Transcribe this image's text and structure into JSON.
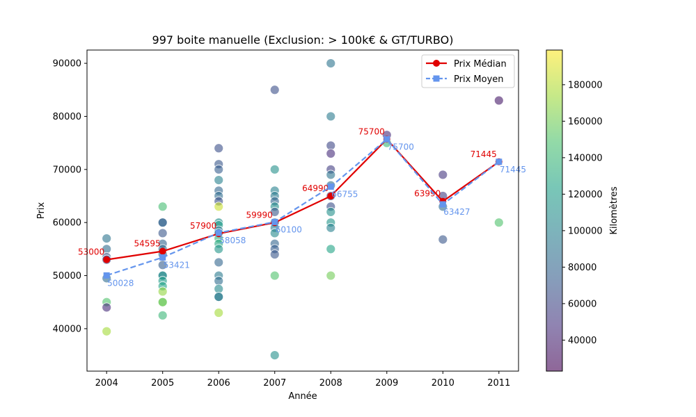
{
  "chart_data": {
    "type": "scatter",
    "title": "997 boite manuelle (Exclusion: > 100k€ & GT/TURBO)",
    "xlabel": "Année",
    "ylabel": "Prix",
    "x_ticks": [
      2004,
      2005,
      2006,
      2007,
      2008,
      2009,
      2010,
      2011
    ],
    "y_ticks": [
      40000,
      50000,
      60000,
      70000,
      80000,
      90000
    ],
    "xlim": [
      2003.65,
      2011.35
    ],
    "ylim": [
      32000,
      92500
    ],
    "colorbar": {
      "label": "Kilomètres",
      "ticks": [
        40000,
        60000,
        80000,
        100000,
        120000,
        140000,
        160000,
        180000
      ],
      "range": [
        23000,
        199000
      ],
      "colors": [
        "#440154",
        "#46327e",
        "#365c8d",
        "#277f8e",
        "#1fa187",
        "#4ac16d",
        "#a0da39",
        "#fde725"
      ]
    },
    "legend": {
      "position": "top-right",
      "entries": [
        "Prix Médian",
        "Prix Moyen"
      ]
    },
    "series": [
      {
        "name": "Prix Médian",
        "color": "#e00000",
        "style": "solid",
        "x": [
          2004,
          2005,
          2006,
          2007,
          2008,
          2009,
          2010,
          2011
        ],
        "values": [
          53000,
          54595,
          57900,
          59990,
          64990,
          75700,
          63990,
          71445
        ],
        "labels": [
          "53000",
          "54595",
          "57900",
          "59990",
          "64990",
          "75700",
          "63990",
          "71445"
        ]
      },
      {
        "name": "Prix Moyen",
        "color": "#6495ed",
        "style": "dashed",
        "x": [
          2004,
          2005,
          2006,
          2007,
          2008,
          2009,
          2010,
          2011
        ],
        "values": [
          50028,
          53421,
          58058,
          60100,
          66755,
          75700,
          63427,
          71445
        ],
        "labels": [
          "50028",
          "53421",
          "58058",
          "60100",
          "66755",
          "75700",
          "63427",
          "71445"
        ]
      }
    ],
    "scatter_points": [
      {
        "x": 2004,
        "y": 57000,
        "km": 90000
      },
      {
        "x": 2004,
        "y": 55000,
        "km": 85000
      },
      {
        "x": 2004,
        "y": 53500,
        "km": 70000
      },
      {
        "x": 2004,
        "y": 53000,
        "km": 60000
      },
      {
        "x": 2004,
        "y": 49500,
        "km": 85000
      },
      {
        "x": 2004,
        "y": 45000,
        "km": 150000
      },
      {
        "x": 2004,
        "y": 44000,
        "km": 45000
      },
      {
        "x": 2004,
        "y": 39500,
        "km": 175000
      },
      {
        "x": 2005,
        "y": 63000,
        "km": 145000
      },
      {
        "x": 2005,
        "y": 60000,
        "km": 75000
      },
      {
        "x": 2005,
        "y": 60000,
        "km": 80000
      },
      {
        "x": 2005,
        "y": 58000,
        "km": 70000
      },
      {
        "x": 2005,
        "y": 56000,
        "km": 80000
      },
      {
        "x": 2005,
        "y": 55000,
        "km": 85000
      },
      {
        "x": 2005,
        "y": 54000,
        "km": 90000
      },
      {
        "x": 2005,
        "y": 52000,
        "km": 75000
      },
      {
        "x": 2005,
        "y": 50000,
        "km": 95000
      },
      {
        "x": 2005,
        "y": 50000,
        "km": 110000
      },
      {
        "x": 2005,
        "y": 49000,
        "km": 120000
      },
      {
        "x": 2005,
        "y": 48000,
        "km": 125000
      },
      {
        "x": 2005,
        "y": 47000,
        "km": 170000
      },
      {
        "x": 2005,
        "y": 45000,
        "km": 155000
      },
      {
        "x": 2005,
        "y": 45000,
        "km": 160000
      },
      {
        "x": 2005,
        "y": 42500,
        "km": 140000
      },
      {
        "x": 2006,
        "y": 74000,
        "km": 65000
      },
      {
        "x": 2006,
        "y": 71000,
        "km": 70000
      },
      {
        "x": 2006,
        "y": 70000,
        "km": 75000
      },
      {
        "x": 2006,
        "y": 68000,
        "km": 100000
      },
      {
        "x": 2006,
        "y": 66000,
        "km": 80000
      },
      {
        "x": 2006,
        "y": 65000,
        "km": 85000
      },
      {
        "x": 2006,
        "y": 64000,
        "km": 65000
      },
      {
        "x": 2006,
        "y": 63000,
        "km": 185000
      },
      {
        "x": 2006,
        "y": 60000,
        "km": 110000
      },
      {
        "x": 2006,
        "y": 59500,
        "km": 120000
      },
      {
        "x": 2006,
        "y": 58500,
        "km": 90000
      },
      {
        "x": 2006,
        "y": 58000,
        "km": 100000
      },
      {
        "x": 2006,
        "y": 57000,
        "km": 135000
      },
      {
        "x": 2006,
        "y": 56000,
        "km": 130000
      },
      {
        "x": 2006,
        "y": 55000,
        "km": 115000
      },
      {
        "x": 2006,
        "y": 52500,
        "km": 80000
      },
      {
        "x": 2006,
        "y": 50000,
        "km": 95000
      },
      {
        "x": 2006,
        "y": 49000,
        "km": 85000
      },
      {
        "x": 2006,
        "y": 47500,
        "km": 105000
      },
      {
        "x": 2006,
        "y": 46000,
        "km": 110000
      },
      {
        "x": 2006,
        "y": 46000,
        "km": 90000
      },
      {
        "x": 2006,
        "y": 43000,
        "km": 175000
      },
      {
        "x": 2007,
        "y": 85000,
        "km": 65000
      },
      {
        "x": 2007,
        "y": 70000,
        "km": 110000
      },
      {
        "x": 2007,
        "y": 66000,
        "km": 100000
      },
      {
        "x": 2007,
        "y": 65000,
        "km": 95000
      },
      {
        "x": 2007,
        "y": 64000,
        "km": 80000
      },
      {
        "x": 2007,
        "y": 63000,
        "km": 110000
      },
      {
        "x": 2007,
        "y": 62000,
        "km": 70000
      },
      {
        "x": 2007,
        "y": 60000,
        "km": 90000
      },
      {
        "x": 2007,
        "y": 59000,
        "km": 95000
      },
      {
        "x": 2007,
        "y": 58000,
        "km": 105000
      },
      {
        "x": 2007,
        "y": 56000,
        "km": 80000
      },
      {
        "x": 2007,
        "y": 55000,
        "km": 75000
      },
      {
        "x": 2007,
        "y": 54000,
        "km": 70000
      },
      {
        "x": 2007,
        "y": 50000,
        "km": 150000
      },
      {
        "x": 2007,
        "y": 35000,
        "km": 110000
      },
      {
        "x": 2008,
        "y": 90000,
        "km": 90000
      },
      {
        "x": 2008,
        "y": 80000,
        "km": 95000
      },
      {
        "x": 2008,
        "y": 74500,
        "km": 60000
      },
      {
        "x": 2008,
        "y": 73000,
        "km": 45000
      },
      {
        "x": 2008,
        "y": 70000,
        "km": 55000
      },
      {
        "x": 2008,
        "y": 69000,
        "km": 90000
      },
      {
        "x": 2008,
        "y": 67000,
        "km": 85000
      },
      {
        "x": 2008,
        "y": 65000,
        "km": 60000
      },
      {
        "x": 2008,
        "y": 63000,
        "km": 65000
      },
      {
        "x": 2008,
        "y": 62000,
        "km": 110000
      },
      {
        "x": 2008,
        "y": 60000,
        "km": 115000
      },
      {
        "x": 2008,
        "y": 59000,
        "km": 100000
      },
      {
        "x": 2008,
        "y": 55000,
        "km": 125000
      },
      {
        "x": 2008,
        "y": 50000,
        "km": 160000
      },
      {
        "x": 2009,
        "y": 76500,
        "km": 45000
      },
      {
        "x": 2009,
        "y": 75000,
        "km": 140000
      },
      {
        "x": 2010,
        "y": 69000,
        "km": 50000
      },
      {
        "x": 2010,
        "y": 65000,
        "km": 55000
      },
      {
        "x": 2010,
        "y": 63000,
        "km": 85000
      },
      {
        "x": 2010,
        "y": 56800,
        "km": 70000
      },
      {
        "x": 2011,
        "y": 83000,
        "km": 35000
      },
      {
        "x": 2011,
        "y": 60000,
        "km": 150000
      }
    ]
  }
}
